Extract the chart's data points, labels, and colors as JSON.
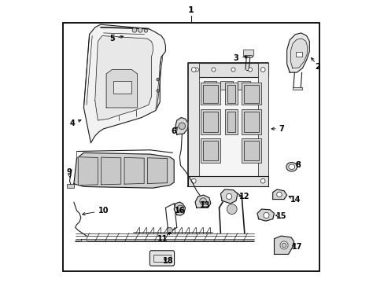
{
  "background_color": "#ffffff",
  "line_color": "#1a1a1a",
  "text_color": "#000000",
  "fig_width": 4.89,
  "fig_height": 3.6,
  "dpi": 100,
  "border": [
    0.04,
    0.04,
    0.91,
    0.88
  ],
  "label_1": [
    0.495,
    0.965
  ],
  "labels": {
    "2": [
      0.945,
      0.765,
      "←"
    ],
    "3": [
      0.645,
      0.795,
      "←"
    ],
    "4": [
      0.085,
      0.565,
      "→"
    ],
    "5": [
      0.215,
      0.865,
      "→"
    ],
    "6": [
      0.445,
      0.535,
      "←"
    ],
    "7": [
      0.815,
      0.545,
      "←"
    ],
    "8": [
      0.875,
      0.415,
      "↑"
    ],
    "9": [
      0.065,
      0.395,
      "↓"
    ],
    "10": [
      0.185,
      0.255,
      "↑"
    ],
    "11": [
      0.395,
      0.155,
      "←"
    ],
    "12": [
      0.685,
      0.305,
      "←"
    ],
    "13": [
      0.545,
      0.275,
      "←"
    ],
    "14": [
      0.865,
      0.295,
      "←"
    ],
    "15": [
      0.815,
      0.235,
      "←"
    ],
    "16": [
      0.455,
      0.255,
      "←"
    ],
    "17": [
      0.875,
      0.125,
      "←"
    ],
    "18": [
      0.415,
      0.075,
      "←"
    ]
  }
}
